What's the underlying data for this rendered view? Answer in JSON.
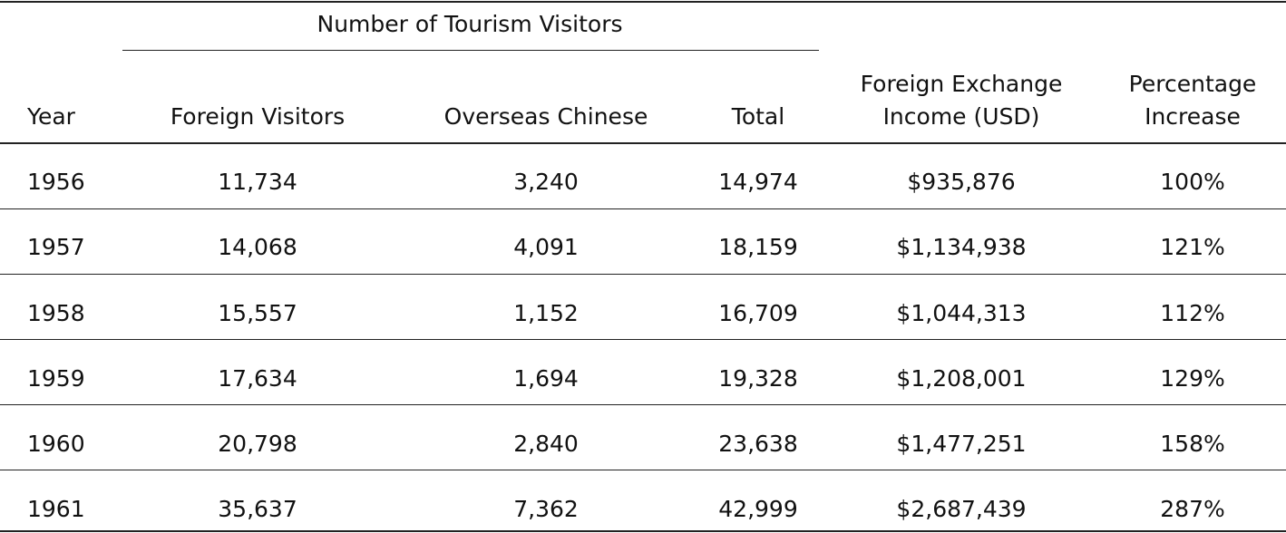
{
  "table": {
    "group_title": "Number of Tourism Visitors",
    "columns": [
      [
        "Year"
      ],
      [
        "Foreign Visitors"
      ],
      [
        "Overseas Chinese"
      ],
      [
        "Total"
      ],
      [
        "Foreign Exchange",
        "Income (USD)"
      ],
      [
        "Percentage",
        "Increase"
      ]
    ],
    "rows": [
      [
        "1956",
        "11,734",
        "3,240",
        "14,974",
        "$935,876",
        "100%"
      ],
      [
        "1957",
        "14,068",
        "4,091",
        "18,159",
        "$1,134,938",
        "121%"
      ],
      [
        "1958",
        "15,557",
        "1,152",
        "16,709",
        "$1,044,313",
        "112%"
      ],
      [
        "1959",
        "17,634",
        "1,694",
        "19,328",
        "$1,208,001",
        "129%"
      ],
      [
        "1960",
        "20,798",
        "2,840",
        "23,638",
        "$1,477,251",
        "158%"
      ],
      [
        "1961",
        "35,637",
        "7,362",
        "42,999",
        "$2,687,439",
        "287%"
      ]
    ]
  }
}
